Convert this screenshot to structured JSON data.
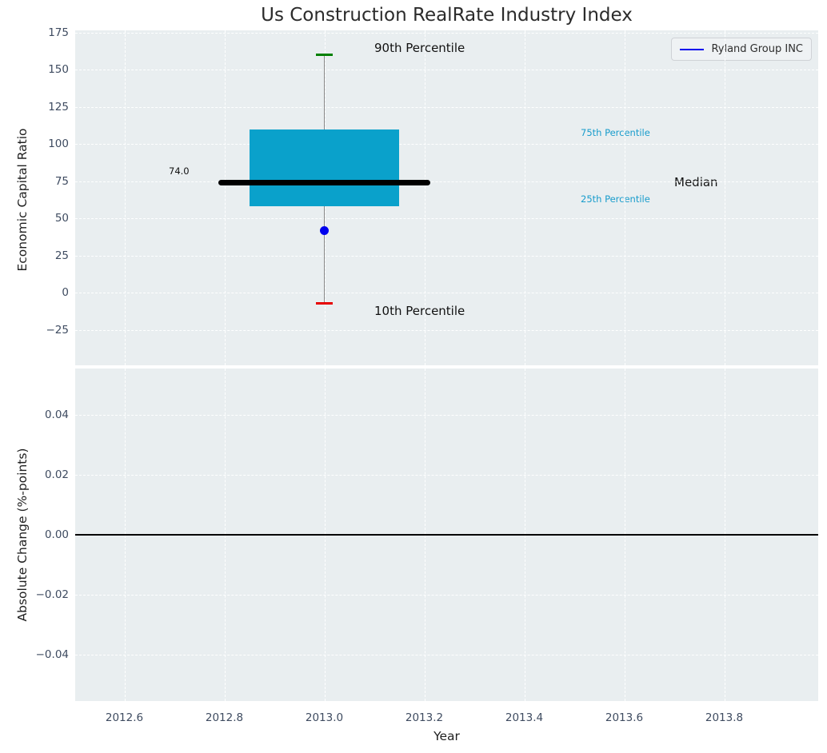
{
  "chart_data": [
    {
      "type": "boxplot",
      "title": "Us Construction RealRate Industry Index",
      "ylabel": "Economic Capital Ratio",
      "ylim": [
        -50,
        175
      ],
      "xlim": [
        2012.5,
        2013.99
      ],
      "grid": true,
      "legend": {
        "label": "Ryland Group INC",
        "position": "upper right",
        "line_color": "#0000ee"
      },
      "x": 2013.0,
      "box_stats": {
        "p90": 160,
        "p75": 110,
        "median": 74.0,
        "p25": 58,
        "p10": -7
      },
      "median_value_label": "74.0",
      "company_point": {
        "label": "Ryland Group INC",
        "x": 2013.0,
        "y": 42,
        "color": "#0000ee"
      },
      "annotations": {
        "p90": "90th Percentile",
        "p75": "75th Percentile",
        "median": "Median",
        "p25": "25th Percentile",
        "p10": "10th Percentile"
      },
      "yticks": [
        {
          "v": 175,
          "label": "175"
        },
        {
          "v": 150,
          "label": "150"
        },
        {
          "v": 125,
          "label": "125"
        },
        {
          "v": 100,
          "label": "100"
        },
        {
          "v": 75,
          "label": "75"
        },
        {
          "v": 50,
          "label": "50"
        },
        {
          "v": 25,
          "label": "25"
        },
        {
          "v": 0,
          "label": "0"
        },
        {
          "v": -25,
          "label": "−25"
        }
      ],
      "xticks": [
        {
          "v": 2012.6
        },
        {
          "v": 2012.8
        },
        {
          "v": 2013.0
        },
        {
          "v": 2013.2
        },
        {
          "v": 2013.4
        },
        {
          "v": 2013.6
        },
        {
          "v": 2013.8
        }
      ],
      "box_color": "#0aa1cb",
      "whisker_color": "#888888",
      "cap_colors": {
        "p90": "#008000",
        "p10": "#e60000"
      },
      "median_color": "#000000",
      "box_halfwidth_years": 0.15,
      "median_halfwidth_years": 0.212
    },
    {
      "type": "line",
      "ylabel": "Absolute Change (%-points)",
      "xlabel": "Year",
      "ylim": [
        -0.055,
        0.055
      ],
      "grid": true,
      "zero_line": 0.0,
      "series": [],
      "yticks": [
        {
          "v": 0.04,
          "label": "0.04"
        },
        {
          "v": 0.02,
          "label": "0.02"
        },
        {
          "v": 0.0,
          "label": "0.00"
        },
        {
          "v": -0.02,
          "label": "−0.02"
        },
        {
          "v": -0.04,
          "label": "−0.04"
        }
      ],
      "xticks": [
        {
          "v": 2012.6,
          "label": "2012.6"
        },
        {
          "v": 2012.8,
          "label": "2012.8"
        },
        {
          "v": 2013.0,
          "label": "2013.0"
        },
        {
          "v": 2013.2,
          "label": "2013.2"
        },
        {
          "v": 2013.4,
          "label": "2013.4"
        },
        {
          "v": 2013.6,
          "label": "2013.6"
        },
        {
          "v": 2013.8,
          "label": "2013.8"
        }
      ]
    }
  ],
  "colors": {
    "axes_background": "#e9eef0",
    "grid": "#ffffff",
    "tick_label": "#3e4b60",
    "box_fill": "#0aa1cb",
    "percentile_text": "#189ccc",
    "p90_cap": "#008000",
    "p10_cap": "#e60000",
    "company_marker": "#0000ee",
    "median_line": "#000000"
  }
}
